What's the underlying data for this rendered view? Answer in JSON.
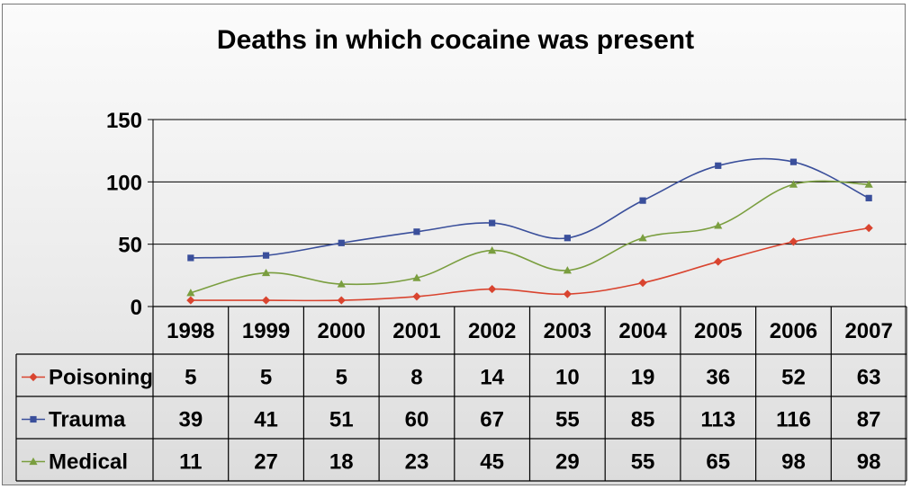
{
  "chart_data": {
    "type": "line",
    "title": "Deaths in which cocaine was present",
    "categories": [
      "1998",
      "1999",
      "2000",
      "2001",
      "2002",
      "2003",
      "2004",
      "2005",
      "2006",
      "2007"
    ],
    "ylim": [
      0,
      150
    ],
    "yticks": [
      0,
      50,
      100,
      150
    ],
    "grid": true,
    "legend": "data-table",
    "series": [
      {
        "name": "Poisoning",
        "color": "#d9442f",
        "marker": "diamond",
        "values": [
          5,
          5,
          5,
          8,
          14,
          10,
          19,
          36,
          52,
          63
        ]
      },
      {
        "name": "Trauma",
        "color": "#3a4f9b",
        "marker": "square",
        "values": [
          39,
          41,
          51,
          60,
          67,
          55,
          85,
          113,
          116,
          87
        ]
      },
      {
        "name": "Medical",
        "color": "#7a9e3f",
        "marker": "triangle",
        "values": [
          11,
          27,
          18,
          23,
          45,
          29,
          55,
          65,
          98,
          98
        ]
      }
    ]
  }
}
